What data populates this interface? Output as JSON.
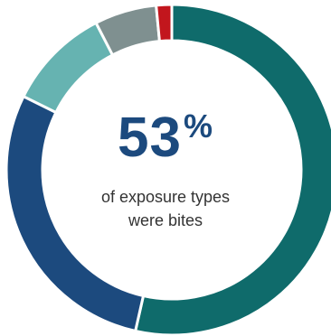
{
  "chart_data": {
    "type": "pie",
    "donut": true,
    "title": "",
    "slices": [
      {
        "value": 53,
        "color": "#0f6b6b"
      },
      {
        "value": 28.5,
        "color": "#1c4a7e"
      },
      {
        "value": 10,
        "color": "#66b3b1"
      },
      {
        "value": 6,
        "color": "#7f9090"
      },
      {
        "value": 1.5,
        "color": "#c2161d"
      }
    ]
  },
  "center": {
    "number": "53",
    "unit": "%",
    "line1": "of exposure types",
    "line2": "were bites"
  }
}
